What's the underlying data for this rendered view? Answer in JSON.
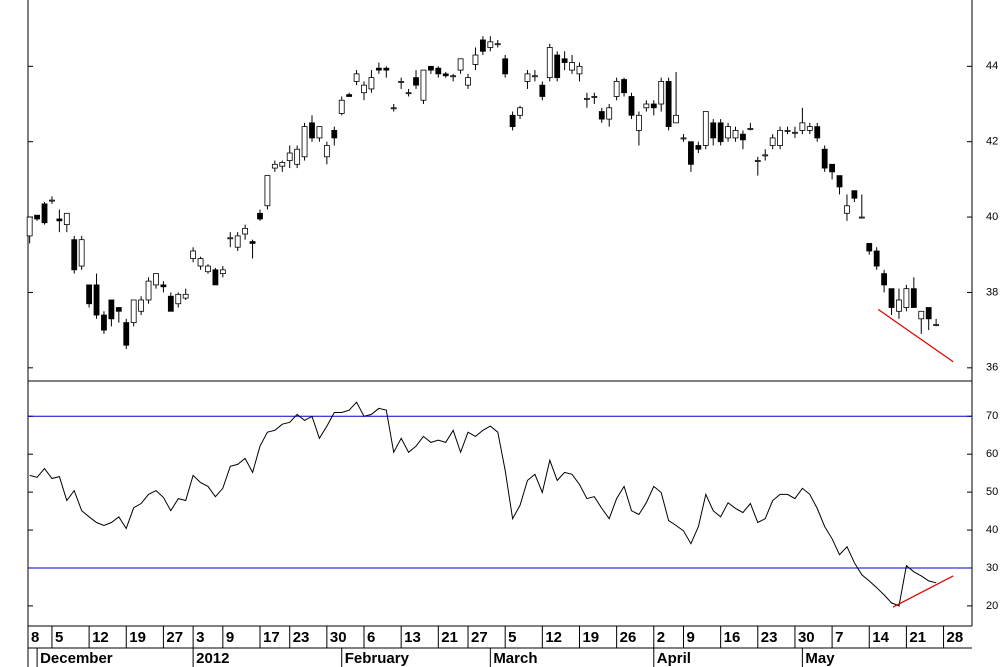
{
  "chart_data": [
    {
      "type": "candlestick",
      "categories": [
        "8",
        null,
        null,
        null,
        null,
        "5",
        null,
        null,
        null,
        null,
        "12",
        null,
        null,
        null,
        null,
        "19",
        null,
        null,
        null,
        null,
        "27",
        null,
        null,
        null,
        "3",
        null,
        null,
        null,
        "9",
        null,
        null,
        null,
        null,
        "17",
        null,
        null,
        null,
        "23",
        null,
        null,
        null,
        null,
        "30",
        null,
        null,
        null,
        null,
        "6",
        null,
        null,
        null,
        null,
        "13",
        null,
        null,
        null,
        null,
        "21",
        null,
        null,
        null,
        "27",
        null,
        null,
        null,
        null,
        "5",
        null,
        null,
        null,
        null,
        "12",
        null,
        null,
        null,
        null,
        "19",
        null,
        null,
        null,
        null,
        "26",
        null,
        null,
        null,
        null,
        "2",
        null,
        null,
        null,
        "9",
        null,
        null,
        null,
        null,
        "16",
        null,
        null,
        null,
        null,
        "23",
        null,
        null,
        null,
        null,
        "30",
        null,
        null,
        null,
        null,
        "7",
        null,
        null,
        null,
        null,
        "14",
        null,
        null,
        null,
        null,
        "21",
        null,
        null,
        null,
        null,
        "28"
      ],
      "month_categories": [
        null,
        null,
        null,
        "December",
        null,
        null,
        null,
        null,
        null,
        null,
        null,
        null,
        null,
        null,
        null,
        null,
        null,
        null,
        null,
        null,
        null,
        null,
        null,
        null,
        "2012",
        null,
        null,
        null,
        null,
        null,
        null,
        null,
        null,
        null,
        null,
        null,
        null,
        null,
        null,
        null,
        null,
        null,
        null,
        null,
        "February",
        null,
        null,
        null,
        null,
        null,
        null,
        null,
        null,
        null,
        null,
        null,
        null,
        null,
        null,
        null,
        null,
        null,
        null,
        null,
        "March",
        null,
        null,
        null,
        null,
        null,
        null,
        null,
        null,
        null,
        null,
        null,
        null,
        null,
        null,
        null,
        null,
        null,
        null,
        null,
        null,
        null,
        "April",
        null,
        null,
        null,
        null,
        null,
        null,
        null,
        null,
        null,
        null,
        null,
        null,
        null,
        null,
        null,
        null,
        null,
        null,
        null,
        "May",
        null,
        null,
        null,
        null,
        null,
        null,
        null,
        null,
        null,
        null,
        null,
        null,
        null,
        null,
        null,
        null,
        null,
        null,
        null
      ],
      "open": [
        null,
        null,
        39.5,
        40.05,
        40.35,
        40.45,
        39.95,
        39.8,
        39.4,
        38.7,
        38.2,
        38.2,
        37.4,
        37.8,
        37.6,
        37.2,
        37.2,
        37.5,
        37.8,
        38.2,
        38.2,
        37.9,
        37.7,
        37.85,
        38.9,
        38.7,
        38.55,
        38.6,
        38.5,
        39.45,
        39.2,
        39.55,
        39.35,
        40.1,
        40.3,
        41.3,
        41.35,
        41.5,
        41.4,
        41.6,
        42.5,
        42.1,
        41.6,
        42.3,
        42.75,
        43.25,
        43.6,
        43.3,
        43.4,
        43.95,
        43.95,
        42.9,
        43.6,
        43.3,
        43.7,
        43.1,
        44.0,
        43.95,
        43.8,
        43.75,
        43.9,
        43.5,
        44.05,
        44.7,
        44.5,
        44.6,
        44.2,
        42.7,
        42.7,
        43.6,
        43.75,
        43.5,
        43.7,
        44.3,
        44.2,
        43.9,
        43.8,
        43.15,
        43.2,
        42.8,
        42.6,
        43.2,
        43.65,
        43.2,
        42.3,
        42.9,
        43.0,
        43.0,
        43.6,
        42.5,
        42.1,
        42.0,
        41.9,
        41.9,
        42.5,
        42.5,
        42.1,
        42.1,
        42.2,
        42.35,
        41.5,
        41.65,
        41.9,
        41.9,
        42.3,
        42.25,
        42.3,
        42.3,
        42.4,
        41.8,
        41.4,
        41.1,
        40.1,
        40.7,
        40.0,
        39.3,
        39.1,
        38.5,
        38.1,
        37.5,
        37.6,
        38.1,
        37.3,
        37.6,
        37.15,
        null
      ],
      "high": [
        null,
        null,
        40.0,
        40.05,
        40.4,
        40.55,
        40.2,
        40.1,
        39.5,
        39.5,
        38.2,
        38.5,
        37.5,
        37.8,
        37.6,
        37.3,
        37.8,
        37.9,
        38.4,
        38.5,
        38.3,
        38.0,
        38.0,
        38.1,
        39.2,
        38.95,
        38.75,
        38.65,
        38.7,
        39.6,
        39.6,
        39.8,
        39.4,
        40.2,
        41.1,
        41.5,
        41.5,
        41.9,
        41.9,
        42.5,
        42.7,
        42.4,
        42.0,
        42.4,
        43.2,
        43.3,
        43.9,
        43.6,
        43.9,
        44.1,
        44.0,
        43.0,
        43.7,
        43.4,
        43.9,
        43.9,
        44.0,
        44.0,
        43.85,
        43.8,
        44.2,
        43.8,
        44.5,
        44.8,
        44.8,
        44.7,
        44.3,
        42.8,
        42.95,
        43.9,
        43.9,
        43.6,
        44.6,
        44.4,
        44.4,
        44.3,
        44.1,
        43.3,
        43.3,
        42.9,
        43.0,
        43.7,
        43.7,
        43.3,
        42.8,
        43.1,
        43.1,
        43.7,
        43.7,
        43.85,
        42.2,
        42.0,
        42.0,
        42.8,
        42.6,
        42.6,
        42.5,
        42.4,
        42.3,
        42.5,
        41.6,
        41.8,
        42.2,
        42.4,
        42.4,
        42.4,
        42.9,
        42.5,
        42.5,
        41.9,
        41.4,
        41.1,
        40.6,
        40.7,
        40.6,
        39.3,
        39.2,
        38.6,
        38.1,
        38.1,
        38.2,
        38.4,
        37.5,
        37.6,
        37.3,
        null
      ],
      "low": [
        null,
        null,
        39.3,
        39.9,
        39.8,
        40.35,
        39.6,
        39.6,
        38.5,
        38.6,
        37.6,
        37.3,
        36.9,
        37.1,
        37.2,
        36.5,
        37.1,
        37.4,
        37.7,
        38.1,
        38.0,
        37.5,
        37.6,
        37.8,
        38.8,
        38.6,
        38.5,
        38.2,
        38.4,
        39.2,
        39.1,
        39.4,
        38.9,
        39.9,
        40.2,
        41.2,
        41.2,
        41.3,
        41.3,
        41.5,
        42.0,
        42.0,
        41.4,
        41.9,
        42.7,
        43.2,
        43.5,
        43.1,
        43.3,
        43.8,
        43.7,
        42.8,
        43.4,
        43.2,
        43.4,
        43.0,
        43.8,
        43.7,
        43.7,
        43.6,
        43.8,
        43.4,
        43.9,
        44.3,
        44.4,
        44.5,
        43.7,
        42.3,
        42.6,
        43.4,
        43.6,
        43.1,
        43.6,
        43.6,
        43.9,
        43.8,
        43.6,
        42.9,
        43.0,
        42.5,
        42.4,
        43.1,
        43.2,
        42.6,
        41.9,
        42.8,
        42.7,
        42.8,
        42.3,
        42.5,
        42.0,
        41.2,
        41.7,
        41.8,
        41.9,
        41.9,
        42.0,
        42.0,
        41.8,
        42.3,
        41.1,
        41.5,
        41.8,
        41.8,
        42.2,
        42.1,
        42.2,
        42.2,
        42.0,
        41.2,
        41.0,
        40.6,
        39.9,
        40.4,
        40.0,
        39.0,
        38.6,
        38.0,
        37.4,
        37.3,
        37.5,
        37.6,
        36.9,
        37.0,
        37.1,
        null
      ],
      "close": [
        null,
        null,
        40.0,
        39.95,
        39.85,
        40.45,
        39.9,
        40.1,
        38.6,
        39.4,
        37.7,
        37.4,
        37.0,
        37.3,
        37.5,
        36.6,
        37.8,
        37.8,
        38.3,
        38.5,
        38.15,
        37.5,
        37.95,
        37.95,
        39.1,
        38.9,
        38.7,
        38.2,
        38.6,
        39.45,
        39.5,
        39.7,
        39.3,
        39.95,
        41.1,
        41.4,
        41.45,
        41.7,
        41.8,
        42.4,
        42.1,
        42.4,
        41.9,
        42.1,
        43.1,
        43.2,
        43.8,
        43.5,
        43.7,
        43.9,
        43.9,
        42.9,
        43.6,
        43.3,
        43.5,
        43.9,
        43.9,
        43.8,
        43.75,
        43.75,
        44.2,
        43.7,
        44.3,
        44.4,
        44.65,
        44.6,
        43.8,
        42.4,
        42.9,
        43.8,
        43.75,
        43.2,
        44.5,
        43.7,
        44.1,
        44.1,
        44.0,
        43.15,
        43.2,
        42.6,
        42.9,
        43.6,
        43.3,
        42.7,
        42.7,
        43.0,
        42.9,
        43.6,
        42.4,
        42.7,
        42.1,
        41.4,
        41.8,
        42.8,
        42.1,
        42.0,
        42.4,
        42.3,
        42.05,
        42.35,
        41.5,
        41.65,
        42.1,
        42.3,
        42.3,
        42.25,
        42.5,
        42.4,
        42.1,
        41.3,
        41.2,
        40.8,
        40.3,
        40.5,
        40.0,
        39.1,
        38.7,
        38.2,
        37.6,
        37.8,
        38.1,
        37.6,
        37.5,
        37.3,
        37.15,
        null
      ],
      "up_color": "#ffffff",
      "down_color": "#000000",
      "ylim": [
        35.65,
        45.76
      ],
      "yticks": [
        36,
        38,
        40,
        42,
        44
      ],
      "trendline": {
        "color": "#e00000",
        "x": [
          116.2,
          126.3
        ],
        "y": [
          37.55,
          36.16
        ]
      }
    },
    {
      "type": "line",
      "values": [
        null,
        null,
        54.4,
        53.9,
        56.2,
        53.6,
        54.1,
        47.8,
        50.4,
        45.1,
        43.5,
        42,
        41.2,
        42,
        43.5,
        40.4,
        45.9,
        47,
        49.4,
        50.4,
        48.6,
        45.1,
        48.3,
        47.8,
        54.4,
        52.5,
        51.5,
        48.8,
        51,
        56.8,
        57.3,
        58.9,
        55.2,
        62.1,
        65.8,
        66.3,
        67.9,
        68.4,
        70.5,
        68.9,
        70,
        64.2,
        67.4,
        71,
        71,
        71.6,
        73.7,
        70,
        70.5,
        72.1,
        71.6,
        60.5,
        64.2,
        60.5,
        62.1,
        64.7,
        63.1,
        63.7,
        63.1,
        66.3,
        60.5,
        65.8,
        64.7,
        66.3,
        67.4,
        65.8,
        55.7,
        43,
        46.5,
        53.1,
        54.7,
        49.9,
        58.4,
        53.1,
        55.2,
        54.7,
        52,
        48.3,
        48.8,
        45.7,
        43,
        48.3,
        51.5,
        45.1,
        44.1,
        47.2,
        51.5,
        49.9,
        42.5,
        41.2,
        39.8,
        36.4,
        40.9,
        49.4,
        45.1,
        43.5,
        47.2,
        45.7,
        44.6,
        47,
        42,
        43,
        47.8,
        49.4,
        49.4,
        48.3,
        51,
        49.4,
        45.7,
        40.9,
        37.7,
        33.5,
        35.6,
        31.4,
        28.2,
        26.6,
        24.8,
        22.9,
        20.8,
        20,
        30.6,
        29,
        27.9,
        26.6,
        26.1,
        null
      ],
      "color": "#000000",
      "ylim": [
        14.7,
        79.3
      ],
      "yticks": [
        20,
        30,
        40,
        50,
        60,
        70
      ],
      "reference_lines": [
        30,
        70
      ],
      "reference_color": "#0000cc",
      "trendline": {
        "color": "#e00000",
        "x": [
          118.2,
          126.3
        ],
        "y": [
          19.7,
          27.9
        ]
      }
    }
  ]
}
